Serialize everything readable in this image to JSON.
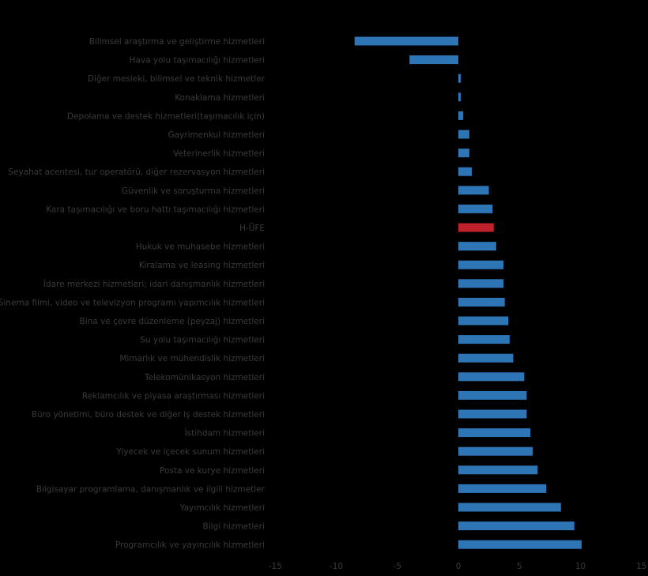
{
  "chart_data": {
    "type": "bar",
    "orientation": "horizontal",
    "title": "",
    "xlabel": "",
    "ylabel": "",
    "xlim": [
      -15,
      15
    ],
    "x_ticks": [
      -15,
      -10,
      -5,
      0,
      5,
      10,
      15
    ],
    "grid": false,
    "legend": "none",
    "colors": {
      "default": "#2e75b6",
      "highlight": "#c0202a",
      "background": "#000000",
      "text": "#3a3a3a"
    },
    "highlight_category": "H-ÜFE",
    "categories": [
      "Bilimsel araştırma ve geliştirme hizmetleri",
      "Hava yolu taşımacılığı hizmetleri",
      "Diğer mesleki, bilimsel ve teknik hizmetler",
      "Konaklama hizmetleri",
      "Depolama ve destek hizmetleri(taşımacılık için)",
      "Gayrimenkul hizmetleri",
      "Veterinerlik hizmetleri",
      "Seyahat acentesi, tur operatörü, diğer rezervasyon hizmetleri",
      "Güvenlik ve soruşturma hizmetleri",
      "Kara taşımacılığı ve boru hattı taşımacılığı hizmetleri",
      "H-ÜFE",
      "Hukuk ve muhasebe hizmetleri",
      "Kiralama ve leasing hizmetleri",
      "İdare merkezi hizmetleri; idari danışmanlık hizmetleri",
      "Sinema filmi, video ve televizyon programı yapımcılık hizmetleri",
      "Bina ve çevre düzenleme (peyzaj) hizmetleri",
      "Su yolu taşımacılığı hizmetleri",
      "Mimarlık ve mühendislik hizmetleri",
      "Telekomünikasyon hizmetleri",
      "Reklamcılık ve piyasa araştırması hizmetleri",
      "Büro yönetimi, büro destek ve diğer iş destek hizmetleri",
      "İstihdam hizmetleri",
      "Yiyecek ve içecek sunum hizmetleri",
      "Posta ve kurye hizmetleri",
      "Bilgisayar programlama, danışmanlık ve ilgili hizmetler",
      "Yayımcılık hizmetleri",
      "Bilgi hizmetleri",
      "Programcılık ve yayıncılık hizmetleri"
    ],
    "values": [
      -8.5,
      -4.0,
      0.2,
      0.2,
      0.4,
      0.9,
      0.9,
      1.1,
      2.5,
      2.8,
      2.9,
      3.1,
      3.7,
      3.7,
      3.8,
      4.1,
      4.2,
      4.5,
      5.4,
      5.6,
      5.6,
      5.9,
      6.1,
      6.5,
      7.2,
      8.4,
      9.5,
      10.1
    ]
  }
}
